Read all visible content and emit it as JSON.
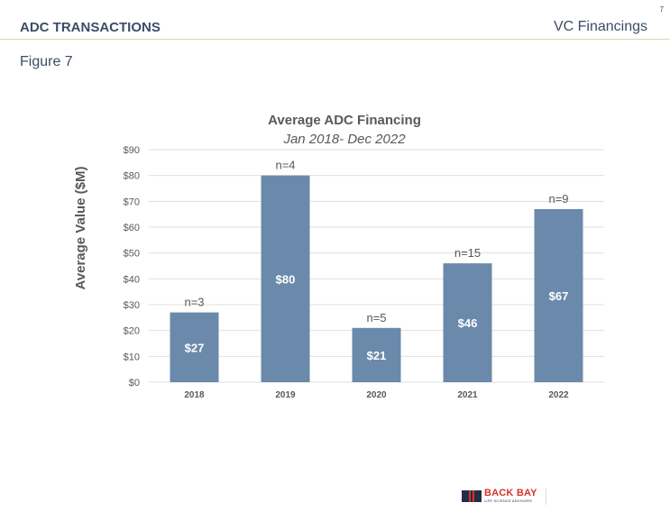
{
  "header": {
    "section_title": "ADC TRANSACTIONS",
    "category": "VC Financings",
    "page_number": "7"
  },
  "figure_label": "Figure 7",
  "footer": {
    "logo_name": "BACK BAY",
    "logo_subtitle": "LIFE SCIENCE ADVISORS"
  },
  "colors": {
    "bar": "#6b8aab",
    "header_text": "#3b4e66",
    "rule": "#d8d6b8",
    "grid": "#e0e0e0",
    "axis_text": "#595959"
  },
  "chart_data": {
    "type": "bar",
    "title": "Average ADC Financing",
    "subtitle": "Jan 2018- Dec 2022",
    "xlabel": "",
    "ylabel": "Average Value ($M)",
    "ylim": [
      0,
      90
    ],
    "ytick_step": 10,
    "ytick_labels": [
      "$0",
      "$10",
      "$20",
      "$30",
      "$40",
      "$50",
      "$60",
      "$70",
      "$80",
      "$90"
    ],
    "grid": true,
    "categories": [
      "2018",
      "2019",
      "2020",
      "2021",
      "2022"
    ],
    "values": [
      27,
      80,
      21,
      46,
      67
    ],
    "value_labels": [
      "$27",
      "$80",
      "$21",
      "$46",
      "$67"
    ],
    "annotations": [
      "n=3",
      "n=4",
      "n=5",
      "n=15",
      "n=9"
    ]
  }
}
